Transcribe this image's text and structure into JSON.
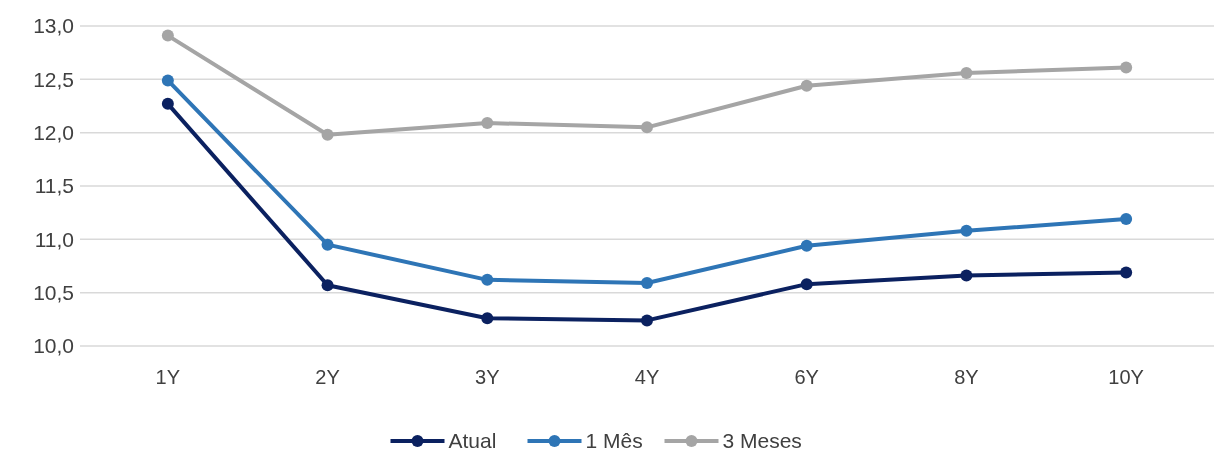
{
  "chart_data": {
    "type": "line",
    "categories": [
      "1Y",
      "2Y",
      "3Y",
      "4Y",
      "6Y",
      "8Y",
      "10Y"
    ],
    "series": [
      {
        "name": "Atual",
        "color": "#0b2160",
        "values": [
          12.27,
          10.57,
          10.26,
          10.24,
          10.58,
          10.66,
          10.69
        ]
      },
      {
        "name": "1 Mês",
        "color": "#2e75b6",
        "values": [
          12.49,
          10.95,
          10.62,
          10.59,
          10.94,
          11.08,
          11.19
        ]
      },
      {
        "name": "3 Meses",
        "color": "#a5a5a5",
        "values": [
          12.91,
          11.98,
          12.09,
          12.05,
          12.44,
          12.56,
          12.61
        ]
      }
    ],
    "ylim": [
      10,
      13
    ],
    "yticks": [
      {
        "value": 10,
        "label": "10,0"
      },
      {
        "value": 10.5,
        "label": "10,5"
      },
      {
        "value": 11,
        "label": "11,0"
      },
      {
        "value": 11.5,
        "label": "11,5"
      },
      {
        "value": 12,
        "label": "12,0"
      },
      {
        "value": 12.5,
        "label": "12,5"
      },
      {
        "value": 13,
        "label": "13,0"
      }
    ],
    "grid": "y",
    "legend": "bottom",
    "marker": "circle",
    "line_style": "solid"
  }
}
